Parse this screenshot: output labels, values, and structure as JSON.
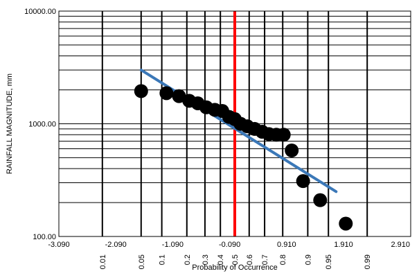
{
  "chart_data": {
    "type": "scatter",
    "title": "",
    "xlabel": "Probability of Occurrence",
    "ylabel": "RAINFALL MAGNITUDE, mm",
    "y_scale": "log",
    "ylim": [
      100,
      10000
    ],
    "xlim": [
      -3.09,
      3.09
    ],
    "grid": true,
    "x_ticks": [
      {
        "value": -3.09,
        "label": "-3.090"
      },
      {
        "value": -2.09,
        "label": "-2.090"
      },
      {
        "value": -1.09,
        "label": "-1.090"
      },
      {
        "value": -0.09,
        "label": "-0.090"
      },
      {
        "value": 0.91,
        "label": "0.910"
      },
      {
        "value": 1.91,
        "label": "1.910"
      },
      {
        "value": 2.91,
        "label": "2.910"
      }
    ],
    "y_ticks": [
      {
        "value": 100,
        "label": "100.00"
      },
      {
        "value": 1000,
        "label": "1000.00"
      },
      {
        "value": 10000,
        "label": "10000.00"
      }
    ],
    "probability_ticks": [
      {
        "value": -2.326,
        "label": "0.01"
      },
      {
        "value": -1.645,
        "label": "0.05"
      },
      {
        "value": -1.282,
        "label": "0.1"
      },
      {
        "value": -0.842,
        "label": "0.2"
      },
      {
        "value": -0.524,
        "label": "0.3"
      },
      {
        "value": -0.253,
        "label": "0.4"
      },
      {
        "value": 0.0,
        "label": "0.5"
      },
      {
        "value": 0.253,
        "label": "0.6"
      },
      {
        "value": 0.524,
        "label": "0.7"
      },
      {
        "value": 0.842,
        "label": "0.8"
      },
      {
        "value": 1.282,
        "label": "0.9"
      },
      {
        "value": 1.645,
        "label": "0.95"
      },
      {
        "value": 2.326,
        "label": "0.99"
      }
    ],
    "median_line": {
      "x": 0.0,
      "color": "#ff0000"
    },
    "series": [
      {
        "kind": "points",
        "color": "#000000",
        "points": [
          {
            "x": -1.645,
            "y": 1950
          },
          {
            "x": -1.2,
            "y": 1870
          },
          {
            "x": -0.98,
            "y": 1760
          },
          {
            "x": -0.8,
            "y": 1600
          },
          {
            "x": -0.65,
            "y": 1520
          },
          {
            "x": -0.5,
            "y": 1400
          },
          {
            "x": -0.35,
            "y": 1330
          },
          {
            "x": -0.22,
            "y": 1300
          },
          {
            "x": -0.1,
            "y": 1150
          },
          {
            "x": 0.0,
            "y": 1100
          },
          {
            "x": 0.1,
            "y": 1000
          },
          {
            "x": 0.22,
            "y": 950
          },
          {
            "x": 0.35,
            "y": 900
          },
          {
            "x": 0.48,
            "y": 850
          },
          {
            "x": 0.6,
            "y": 810
          },
          {
            "x": 0.73,
            "y": 800
          },
          {
            "x": 0.86,
            "y": 800
          },
          {
            "x": 1.0,
            "y": 580
          },
          {
            "x": 1.2,
            "y": 310
          },
          {
            "x": 1.5,
            "y": 210
          },
          {
            "x": 1.95,
            "y": 130
          }
        ]
      },
      {
        "kind": "line",
        "color": "#3b78b8",
        "points": [
          {
            "x": -1.645,
            "y": 3000
          },
          {
            "x": 1.78,
            "y": 250
          }
        ]
      }
    ]
  }
}
